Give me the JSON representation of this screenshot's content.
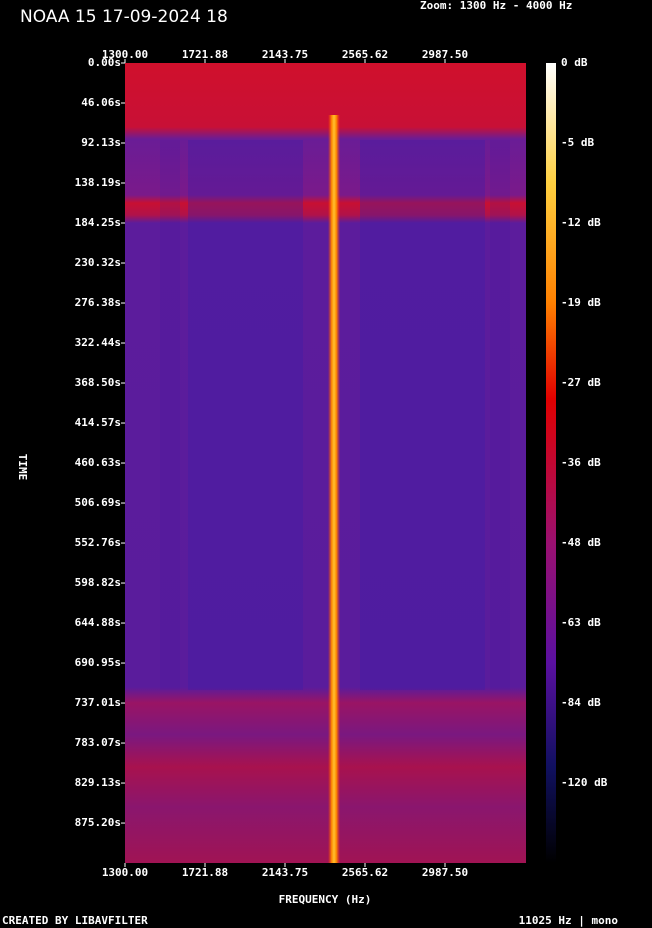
{
  "chart_data": {
    "type": "spectrogram",
    "title": "NOAA 15 17-09-2024 18",
    "subtitle": "Zoom: 1300 Hz - 4000 Hz",
    "x_label": "FREQUENCY (Hz)",
    "y_label": "TIME",
    "footer_left": "CREATED BY LIBAVFILTER",
    "footer_right": "11025 Hz | mono",
    "xlim": [
      1300,
      3414.6
    ],
    "xticks": [
      {
        "value": 1300,
        "label": "1300.00"
      },
      {
        "value": 1721.88,
        "label": "1721.88"
      },
      {
        "value": 2143.75,
        "label": "2143.75"
      },
      {
        "value": 2565.62,
        "label": "2565.62"
      },
      {
        "value": 2987.5,
        "label": "2987.50"
      }
    ],
    "ylim": [
      0,
      921.2
    ],
    "yticks": [
      {
        "value": 0,
        "label": "0.00s"
      },
      {
        "value": 46.06,
        "label": "46.06s"
      },
      {
        "value": 92.13,
        "label": "92.13s"
      },
      {
        "value": 138.19,
        "label": "138.19s"
      },
      {
        "value": 184.25,
        "label": "184.25s"
      },
      {
        "value": 230.32,
        "label": "230.32s"
      },
      {
        "value": 276.38,
        "label": "276.38s"
      },
      {
        "value": 322.44,
        "label": "322.44s"
      },
      {
        "value": 368.5,
        "label": "368.50s"
      },
      {
        "value": 414.57,
        "label": "414.57s"
      },
      {
        "value": 460.63,
        "label": "460.63s"
      },
      {
        "value": 506.69,
        "label": "506.69s"
      },
      {
        "value": 552.76,
        "label": "552.76s"
      },
      {
        "value": 598.82,
        "label": "598.82s"
      },
      {
        "value": 644.88,
        "label": "644.88s"
      },
      {
        "value": 690.95,
        "label": "690.95s"
      },
      {
        "value": 737.01,
        "label": "737.01s"
      },
      {
        "value": 783.07,
        "label": "783.07s"
      },
      {
        "value": 829.13,
        "label": "829.13s"
      },
      {
        "value": 875.2,
        "label": "875.20s"
      }
    ],
    "colorbar_ticks": [
      {
        "value": 0,
        "label": "0 dB"
      },
      {
        "value": -5,
        "label": "-5 dB"
      },
      {
        "value": -12,
        "label": "-12 dB"
      },
      {
        "value": -19,
        "label": "-19 dB"
      },
      {
        "value": -27,
        "label": "-27 dB"
      },
      {
        "value": -36,
        "label": "-36 dB"
      },
      {
        "value": -48,
        "label": "-48 dB"
      },
      {
        "value": -63,
        "label": "-63 dB"
      },
      {
        "value": -84,
        "label": "-84 dB"
      },
      {
        "value": -120,
        "label": "-120 dB"
      }
    ]
  }
}
